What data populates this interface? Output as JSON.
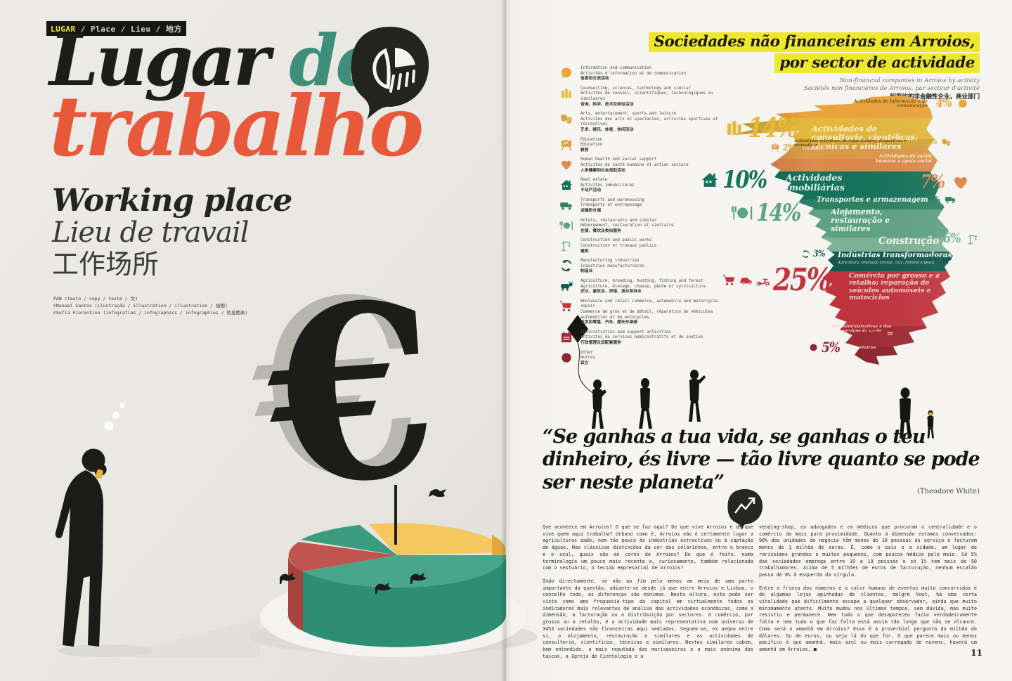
{
  "meta": {
    "page_number": "11"
  },
  "left_page": {
    "kicker": {
      "highlight": "LUGAR",
      "rest": " / Place / Lieu / 地方"
    },
    "title": {
      "word1": "Lugar ",
      "word2": "de",
      "word3": "trabalho"
    },
    "subtitle_en": "Working place",
    "subtitle_fr": "Lieu de travail",
    "subtitle_zh": "工作场所",
    "credits": [
      "PAN (texto / copy / texte / 文)",
      "©Manuel Santos (ilustração / illustration / illustration / 插图)",
      "©Sofia Fiorentino (infografias / infographics / infographies / 信息图表)"
    ],
    "colors": {
      "title_black": "#1d1d1b",
      "title_teal": "#3e8e79",
      "title_orange": "#e8593b",
      "kicker_yellow": "#f0e935"
    }
  },
  "right_page": {
    "chart_title_line1": "Sociedades não financeiras em Arroios,",
    "chart_title_line2": "por sector de actividade",
    "chart_sub_en": "Non-financial companies in Arroios by activity",
    "chart_sub_fr": "Sociétés non financières de Arroios, par secteur d'activité",
    "chart_sub_zh": "阿罗约的非金融性企业，商业部门",
    "title_highlight": "#efe72e",
    "quote": "“Se ganhas a tua vida, se ganhas o teu dinheiro, és livre — tão livre quanto se pode ser neste planeta”",
    "quote_attribution": "(Theodore White)",
    "body_col1": [
      "Que acontece em Arroios? O que se faz aqui? De que vive Arroios e de que vive quem aqui trabalha? Urbano como é, Arroios não é certamente lugar a agriculturas dado, nem tão pouco às indústrias extractivas ou à captação de águas. Nas clássicas distinções da cor dos colarinhos, entre o branco e o azul, quais são as cores de Arroios? De que é feito, numa terminologia um pouco mais recente e, curiosamente, também relacionada com o vestuário, o tecido empresarial de Arroios?",
      "Indo directamente, se não ao fim pelo menos ao meio de uma parte importante da questão, adiante-se desde já que entre Arroios e Lisboa, o concelho todo, as diferenças são mínimas. Nesta altura, esta pode ser vista como uma freguesia-tipo da capital em virtualmente todos os indicadores mais relevantes de análise das actividades económicas, como a dimensão, a facturação ou a distribuição por sectores. O comércio, por grosso ou a retalho, é a actividade mais representativa num universo de 3453 sociedades não financeiras aqui sediadas. Seguem-se, ex aequo entre si, o alojamento, restauração e similares e as actividades de consultoria, científicas, técnicas e similares. Nestes similares cabem, bem entendido, a mais reputada das marisqueiras e a mais anónima das tascas, a Igreja de Cientologia e a"
    ],
    "body_col2": [
      "vending-shop, os advogados e os médicos que procuram a centralidade e o comércio da mais pura proximidade. Quanto à dimensão estamos conversados: 90% das unidades de negócio têm menos de 10 pessoas ao serviço e facturam menos de 1 milhão de euros. É, como o país e a cidade, um lugar de raríssimos grandes e muitos pequenos, com poucos médios pelo meio. Só 5% das sociedades emprega entre 10 e 19 pessoas e só 1% tem mais de 50 trabalhadores. Acima de 5 milhões de euros de facturação, nenhum escalão passa de 0% à esquerda da vírgula.",
      "Entre a frieza dos números e o calor humano de eventos muito concorridos e de algumas lojas apinhadas de clientes, malgré tout, há uma certa vitalidade que dificilmente escapa a qualquer observador, ainda que muito minimamente atento. Muito mudou nos últimos tempos, sem dúvida, mas muito resistiu e permanece. Nem tudo o que desapareceu fazia verdadeiramente falta e nem tudo o que faz falta está assim tão longe que não se alcance. Como será o amanhã em Arroios? Essa é a proverbial pergunta do milhão de dólares. Ou de euros, ou seja lá do que for. O que parece mais ou menos pacífico é que amanhã, mais azul ou mais carregado de nuvens, haverá um amanhã em Arroios. ■"
    ]
  },
  "sectors": [
    {
      "id": "info",
      "icon": "speech-bubble",
      "color": "#eda43c",
      "pct": "4%",
      "en": "Information and communication",
      "fr": "Activités d'information et de communication",
      "zh": "信息和交流活动",
      "pt": "Actividades de informação e de comunicação"
    },
    {
      "id": "consulting",
      "icon": "books",
      "color": "#e5ba3c",
      "pct": "14%",
      "en": "Counselling, sciences, technology and similar",
      "fr": "Activités de conseil, scientifiques, technologiques ou similaires",
      "zh": "咨询、科学、技术及类似活动",
      "pt": "Actividades de consultoria, científicas, técnicas e similares"
    },
    {
      "id": "arts",
      "icon": "theater-masks",
      "color": "#d7a637",
      "pct": "1%",
      "en": "Arts, entertainment, sports and leisure",
      "fr": "Activités des arts et spectacles, activités sportives et récréatives",
      "zh": "艺术、娱乐、体育、休闲活动",
      "pt": "Actividades artísticas, de espectáculos, desportivas e recreativas"
    },
    {
      "id": "education",
      "icon": "easel",
      "color": "#dd9c49",
      "pct": "2%",
      "en": "Education",
      "fr": "Education",
      "zh": "教育",
      "pt": "Educação"
    },
    {
      "id": "health",
      "icon": "heart",
      "color": "#e08a4d",
      "pct": "7%",
      "en": "Human health and social support",
      "fr": "Activités de santé humaine et action sociale",
      "zh": "人类健康和社会资助活动",
      "pt": "Actividades de saúde humana e apoio social"
    },
    {
      "id": "real-estate",
      "icon": "house",
      "color": "#15735c",
      "pct": "10%",
      "en": "Real estate",
      "fr": "Activités immobilières",
      "zh": "不动产活动",
      "pt": "Actividades imobiliárias"
    },
    {
      "id": "transport",
      "icon": "truck",
      "color": "#2f8265",
      "pct": "3%",
      "en": "Transports and warehousing",
      "fr": "Transports et entreposage",
      "zh": "运输和仓储",
      "pt": "Transportes e armazenagem"
    },
    {
      "id": "hospitality",
      "icon": "restaurant",
      "color": "#5fa284",
      "pct": "14%",
      "en": "Hotels, restaurants and similar",
      "fr": "Hébergement, restauration et similaire",
      "zh": "住宿、餐饮及类似服务",
      "pt": "Alojamento, restauração e similares"
    },
    {
      "id": "construction",
      "icon": "crane",
      "color": "#7fb397",
      "pct": "6%",
      "en": "Construction and public works",
      "fr": "Construction et travaux publics",
      "zh": "建筑",
      "pt": "Construção"
    },
    {
      "id": "manufacturing",
      "icon": "gear",
      "color": "#14584e",
      "pct": "3%",
      "en": "Manufacturing industries",
      "fr": "Industries manufacturières",
      "zh": "制造业",
      "pt": "Indústrias transformadoras"
    },
    {
      "id": "agriculture",
      "icon": "cow",
      "color": "#0e5b50",
      "pct": "1%",
      "en": "Agriculture, breeding, hunting, fishing and forest",
      "fr": "Agriculture, élevage, chasse, pêche et sylviculture",
      "zh": "农业、畜牧业、狩猎、渔业和林业",
      "pt": "Agricultura, produção animal, caça, floresta e pesca"
    },
    {
      "id": "commerce",
      "icon": "shopping-cart",
      "color": "#c2333d",
      "pct": "25%",
      "en": "Wholesale and retail commerce, automobile and motorcycle repair",
      "fr": "Commerce de gros et de détail, réparation de véhicules automobiles et de motocycles",
      "zh": "批发和零售、汽车、摩托车维修",
      "pt": "Comércio por grosso e a retalho; reparação de veículos automóveis e motociclos"
    },
    {
      "id": "admin",
      "icon": "calendar",
      "color": "#a02b34",
      "pct": "4%",
      "en": "Administration and support activities",
      "fr": "Activités de services administratifs et de soutien",
      "zh": "行政管理及其配套服务",
      "pt": "Act. administrativas e dos serviços de apoio"
    },
    {
      "id": "other",
      "icon": "dot",
      "color": "#8f2630",
      "pct": "5%",
      "en": "Other",
      "fr": "Autres",
      "zh": "其它",
      "pt": "Outros"
    }
  ],
  "chart_data": {
    "type": "bar",
    "title": "Sociedades não financeiras em Arroios, por sector de actividade",
    "subtitle": [
      "Non-financial companies in Arroios by activity",
      "Sociétés non financières de Arroios, par secteur d'activité",
      "阿罗约的非金融性企业，商业部门"
    ],
    "unit": "%",
    "categories": [
      "Actividades de informação e de comunicação",
      "Actividades de consultoria, científicas, técnicas e similares",
      "Actividades artísticas, de espectáculos, desportivas e recreativas",
      "Educação",
      "Actividades de saúde humana e apoio social",
      "Actividades imobiliárias",
      "Transportes e armazenagem",
      "Alojamento, restauração e similares",
      "Construção",
      "Indústrias transformadoras",
      "Agricultura, produção animal, caça, floresta e pesca",
      "Comércio por grosso e a retalho; reparação de veículos automóveis e motociclos",
      "Act. administrativas e dos serviços de apoio",
      "Outros"
    ],
    "values": [
      4,
      14,
      1,
      2,
      7,
      10,
      3,
      14,
      6,
      3,
      1,
      25,
      4,
      5
    ],
    "note": "Percentages drawn as proportional colour bands over the silhouette of the Arroios district map"
  }
}
